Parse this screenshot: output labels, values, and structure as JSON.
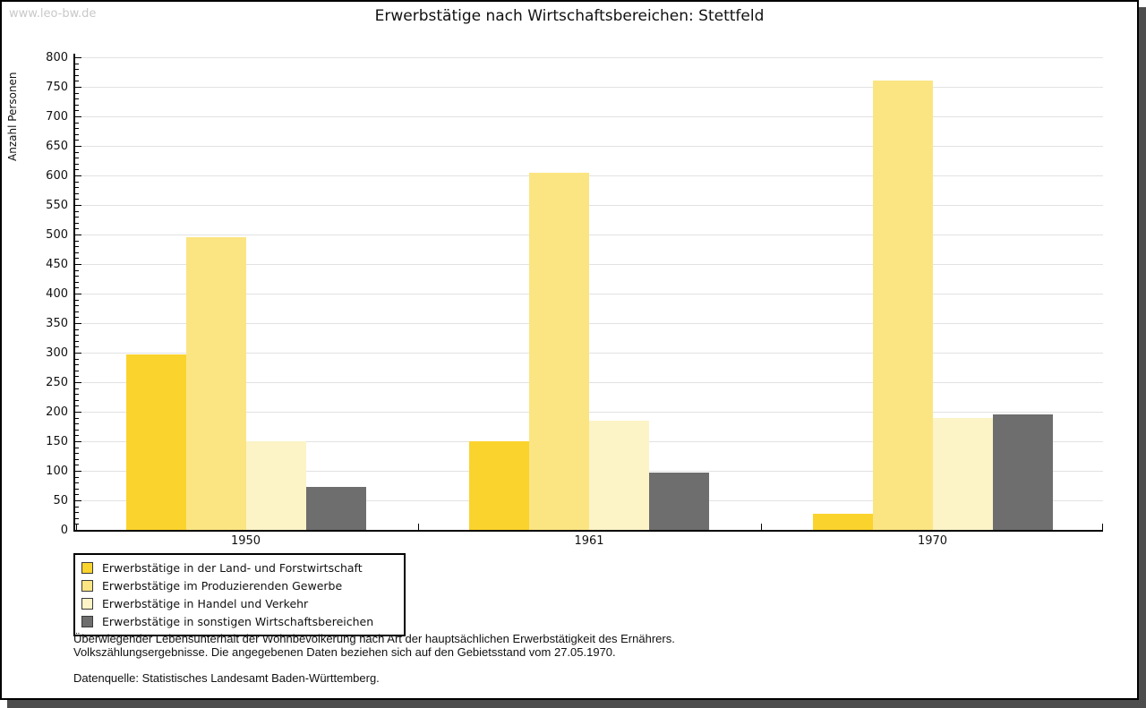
{
  "watermark": "www.leo-bw.de",
  "title": "Erwerbstätige nach Wirtschaftsbereichen: Stettfeld",
  "chart_data": {
    "type": "bar",
    "categories": [
      "1950",
      "1961",
      "1970"
    ],
    "series": [
      {
        "name": "Erwerbstätige in der Land- und Forstwirtschaft",
        "color": "#fbd32d",
        "values": [
          297,
          150,
          28
        ]
      },
      {
        "name": "Erwerbstätige im Produzierenden Gewerbe",
        "color": "#fbe583",
        "values": [
          495,
          605,
          760
        ]
      },
      {
        "name": "Erwerbstätige in Handel und Verkehr",
        "color": "#fcf3c7",
        "values": [
          150,
          185,
          189
        ]
      },
      {
        "name": "Erwerbstätige in sonstigen Wirtschaftsbereichen",
        "color": "#6e6e6e",
        "values": [
          73,
          97,
          195
        ]
      }
    ],
    "title": "Erwerbstätige nach Wirtschaftsbereichen: Stettfeld",
    "xlabel": "",
    "ylabel": "Anzahl Personen",
    "ylim": [
      0,
      800
    ],
    "y_major_step": 50,
    "y_minor_step": 10,
    "grid": true,
    "legend_position": "bottom-left",
    "colors": {
      "gridline": "#e2e2e2",
      "axis": "#000000",
      "frame_shadow": "#4d4d4d",
      "watermark_text": "#c9c9c9"
    }
  },
  "footnote": {
    "line1": "Überwiegender Lebensunterhalt der Wohnbevölkerung nach Art der hauptsächlichen Erwerbstätigkeit des Ernährers.",
    "line2": "Volkszählungsergebnisse. Die angegebenen Daten beziehen sich auf den Gebietsstand vom 27.05.1970.",
    "source": "Datenquelle: Statistisches Landesamt Baden-Württemberg."
  }
}
